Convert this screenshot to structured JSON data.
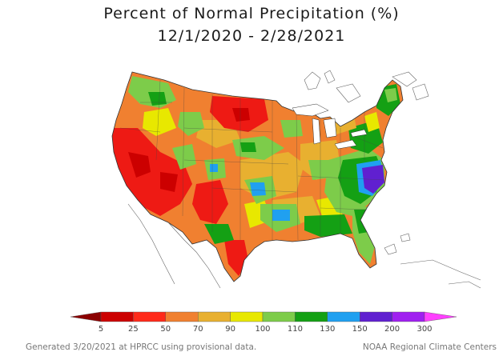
{
  "title": {
    "line1": "Percent of Normal Precipitation (%)",
    "line2": "12/1/2020 - 2/28/2021"
  },
  "legend": {
    "ticks": [
      "5",
      "25",
      "50",
      "70",
      "90",
      "100",
      "110",
      "130",
      "150",
      "200",
      "300"
    ],
    "colors": [
      "#8b0000",
      "#cc0000",
      "#ff2a1a",
      "#f08030",
      "#e8b030",
      "#e8e800",
      "#7dcc4a",
      "#14a014",
      "#20a0f0",
      "#6020d0",
      "#a020f0",
      "#ff40ff"
    ]
  },
  "colors": {
    "very_dry": "#ee1a14",
    "dry": "#f08030",
    "slightly_dry": "#e8b030",
    "near_normal": "#e8e800",
    "slightly_wet": "#7dcc4a",
    "wet": "#14a014",
    "very_wet": "#20a0f0",
    "extreme_wet": "#6020d0"
  },
  "footer": {
    "left": "Generated 3/20/2021 at HPRCC using provisional data.",
    "right": "NOAA Regional Climate Centers"
  }
}
